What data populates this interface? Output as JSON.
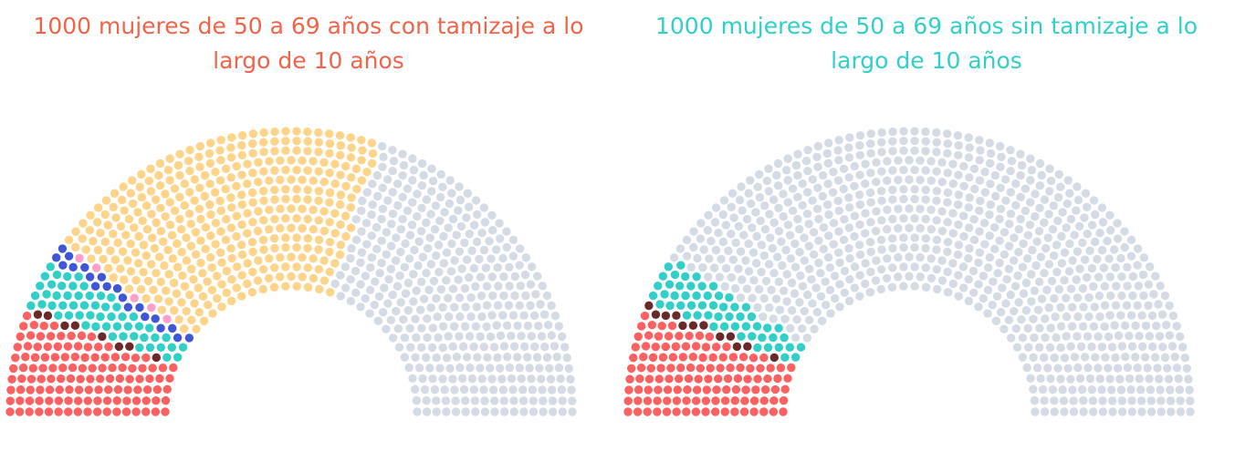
{
  "colors": {
    "title_left": "#f06449",
    "title_right": "#31cfc8",
    "yellow": "#fdd48a",
    "grey": "#d5dbe5",
    "red": "#fb6161",
    "dark": "#6b2a2a",
    "teal": "#31cfc8",
    "blue": "#3f57d6",
    "pink": "#ff9ec8"
  },
  "chart_data": [
    {
      "type": "parliament",
      "title_lines": [
        "1000 mujeres de 50 a 69 años con tamizaje a lo",
        "largo de 10 años"
      ],
      "total": 1000,
      "categories": [
        {
          "color_key": "red",
          "value": 122
        },
        {
          "color_key": "dark",
          "value": 8
        },
        {
          "color_key": "teal",
          "value": 55
        },
        {
          "color_key": "blue",
          "value": 20
        },
        {
          "color_key": "pink",
          "value": 5
        },
        {
          "color_key": "yellow",
          "value": 390
        },
        {
          "color_key": "grey",
          "value": 400
        }
      ]
    },
    {
      "type": "parliament",
      "title_lines": [
        "1000 mujeres de 50 a 69 años sin tamizaje a lo",
        "largo de 10 años"
      ],
      "total": 1000,
      "categories": [
        {
          "color_key": "red",
          "value": 122
        },
        {
          "color_key": "dark",
          "value": 12
        },
        {
          "color_key": "teal",
          "value": 55
        },
        {
          "color_key": "grey",
          "value": 811
        }
      ]
    }
  ]
}
